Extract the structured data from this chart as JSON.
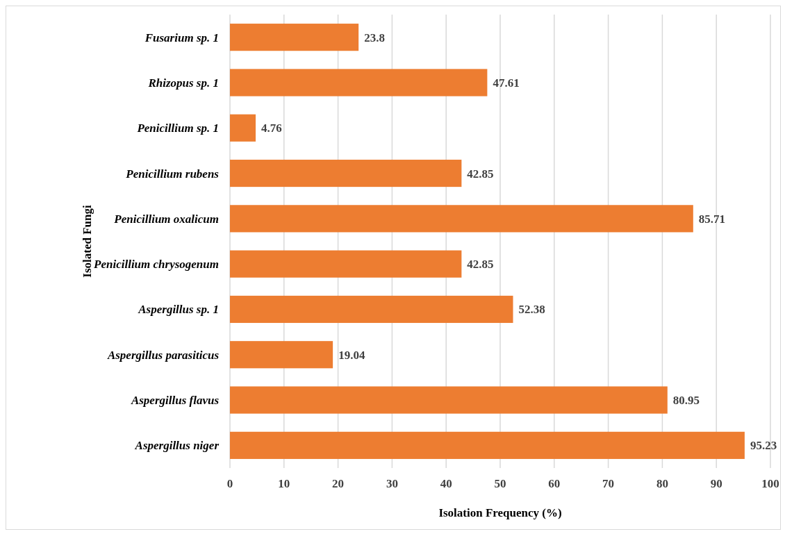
{
  "chart_data": {
    "type": "bar",
    "orientation": "horizontal",
    "xlabel": "Isolation Frequency (%)",
    "ylabel": "Isolated Fungi",
    "categories": [
      "Fusarium sp. 1",
      "Rhizopus sp. 1",
      "Penicillium sp. 1",
      "Penicillium rubens",
      "Penicillium oxalicum",
      "Penicillium chrysogenum",
      "Aspergillus sp. 1",
      "Aspergillus parasiticus",
      "Aspergillus flavus",
      "Aspergillus niger"
    ],
    "values": [
      23.8,
      47.61,
      4.76,
      42.85,
      85.71,
      42.85,
      52.38,
      19.04,
      80.95,
      95.23
    ],
    "color": "#ed7d31",
    "xlim": [
      0,
      100
    ],
    "xticks": [
      0,
      10,
      20,
      30,
      40,
      50,
      60,
      70,
      80,
      90,
      100
    ],
    "grid": "x",
    "data_labels": true
  }
}
